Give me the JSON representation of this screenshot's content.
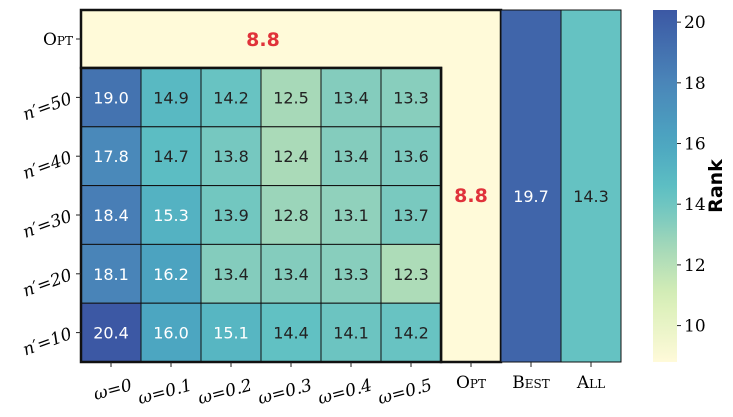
{
  "chart_data": {
    "type": "heatmap",
    "title": "",
    "colorbar_label": "Rank",
    "colorbar_ticks": [
      "10",
      "12",
      "14",
      "16",
      "18",
      "20"
    ],
    "colorbar_range": [
      8.8,
      20.4
    ],
    "row_labels": [
      "n′=50",
      "n′=40",
      "n′=30",
      "n′=20",
      "n′=10"
    ],
    "col_labels": [
      "ω=0",
      "ω=0.1",
      "ω=0.2",
      "ω=0.3",
      "ω=0.4",
      "ω=0.5"
    ],
    "values": [
      [
        19.0,
        14.9,
        14.2,
        12.5,
        13.4,
        13.3
      ],
      [
        17.8,
        14.7,
        13.8,
        12.4,
        13.4,
        13.6
      ],
      [
        18.4,
        15.3,
        13.9,
        12.8,
        13.1,
        13.7
      ],
      [
        18.1,
        16.2,
        13.4,
        13.4,
        13.3,
        12.3
      ],
      [
        20.4,
        16.0,
        15.1,
        14.4,
        14.1,
        14.2
      ]
    ],
    "opt": {
      "label": "Opt",
      "value": 8.8,
      "display": "8.8"
    },
    "extra_columns": [
      {
        "label": "Best",
        "value": 19.7,
        "display": "19.7"
      },
      {
        "label": "All",
        "value": 14.3,
        "display": "14.3"
      }
    ],
    "highlight_color": "#e0323a"
  }
}
